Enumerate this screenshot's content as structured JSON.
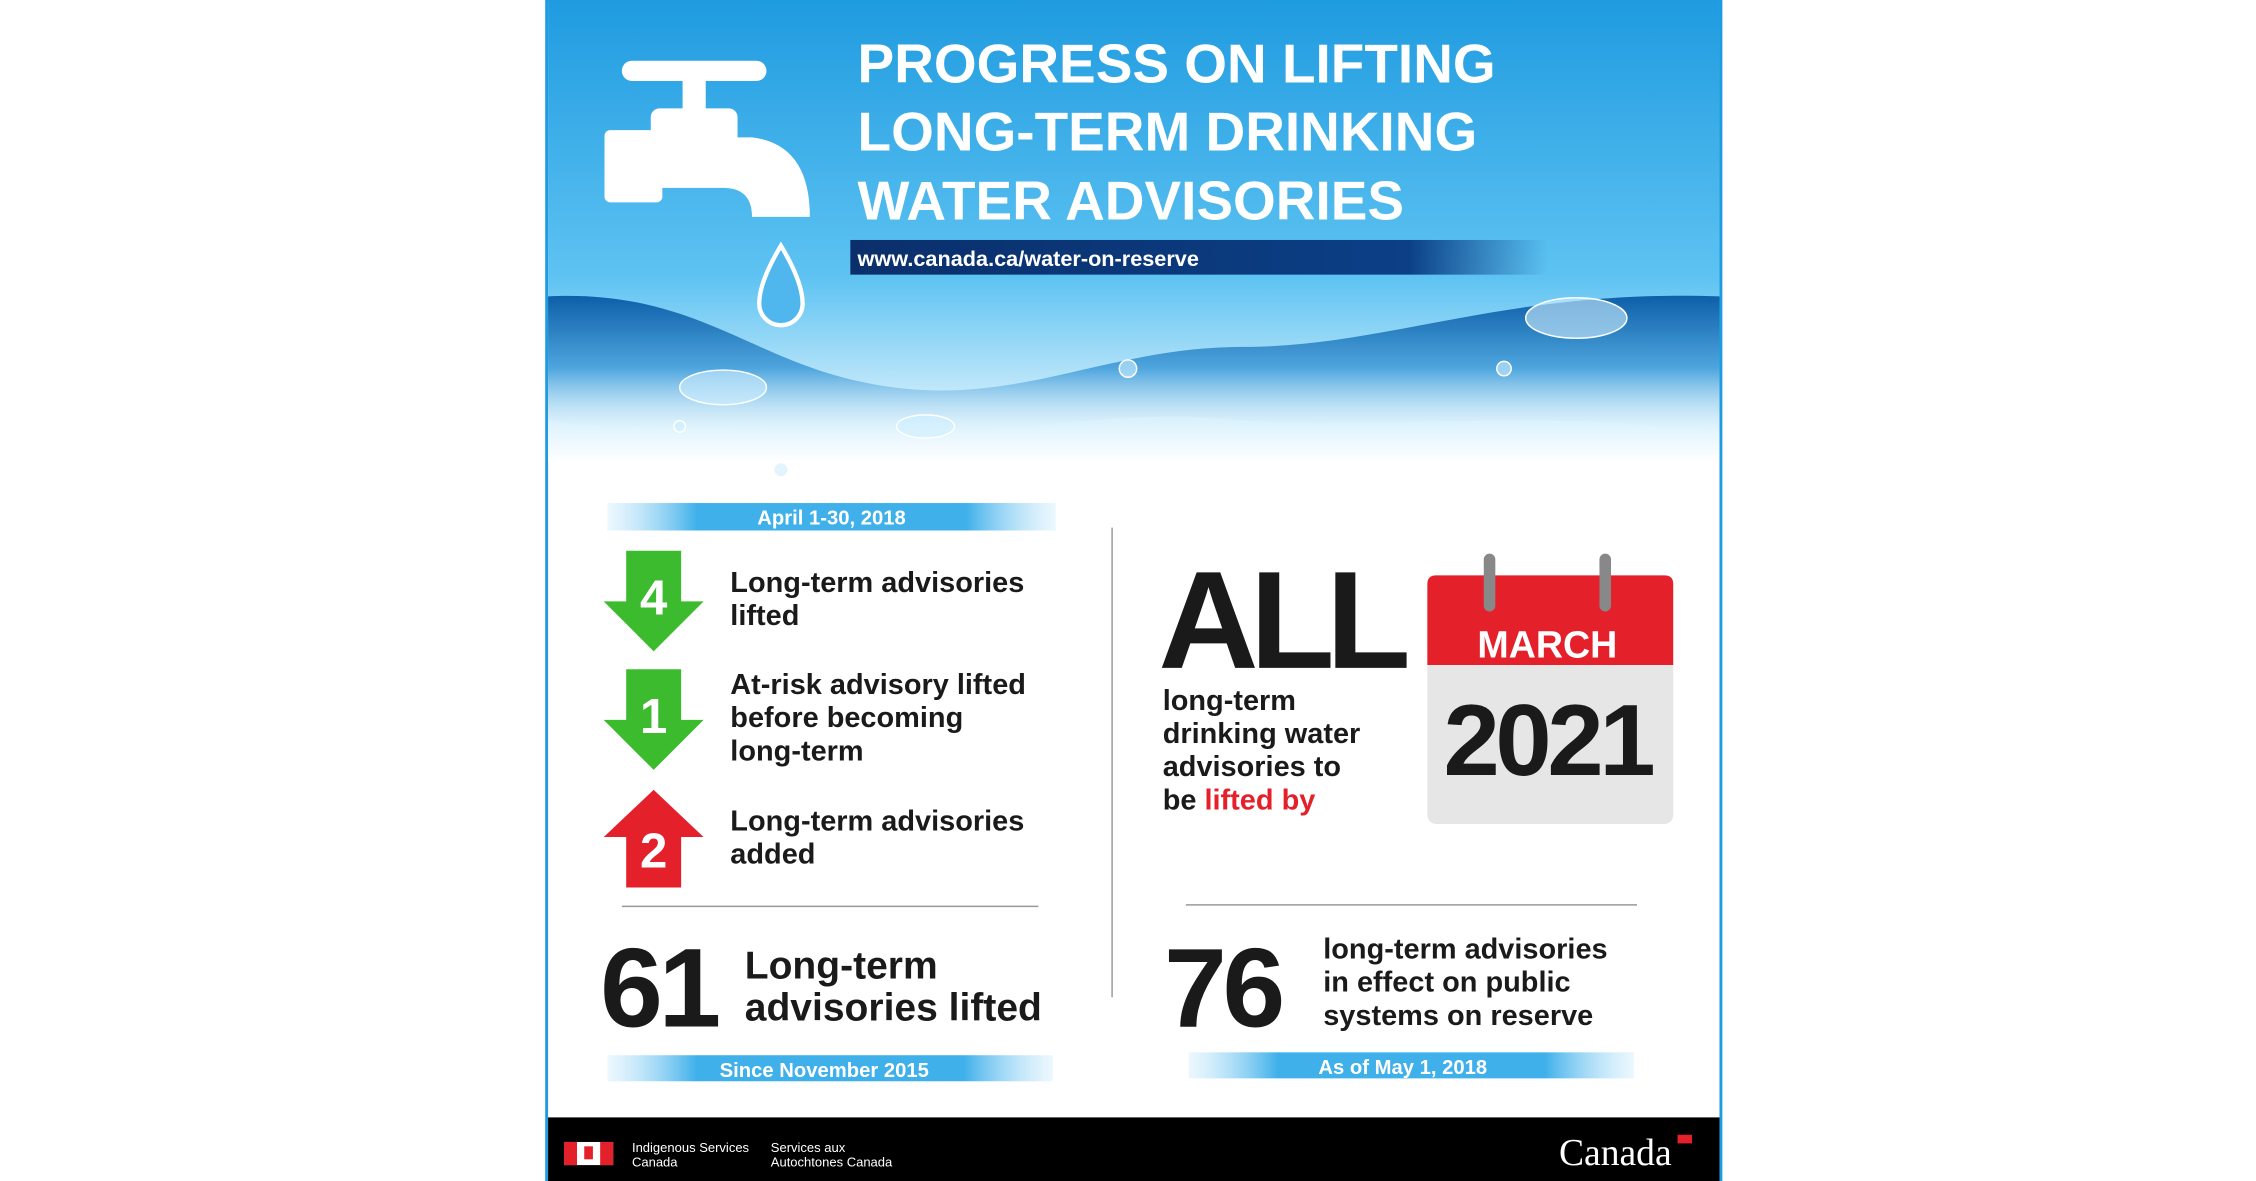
{
  "header": {
    "title": [
      "PROGRESS ON LIFTING",
      "LONG-TERM DRINKING",
      "WATER ADVISORIES"
    ],
    "url": "www.canada.ca/water-on-reserve"
  },
  "monthly": {
    "period": "April 1-30, 2018",
    "items": [
      {
        "number": 4,
        "label": [
          "Long-term advisories",
          "lifted"
        ],
        "direction": "down"
      },
      {
        "number": 1,
        "label": [
          "At-risk advisory lifted",
          "before becoming",
          "long-term"
        ],
        "direction": "down"
      },
      {
        "number": 2,
        "label": [
          "Long-term advisories",
          "added"
        ],
        "direction": "up"
      }
    ]
  },
  "total_lifted": {
    "number": 61,
    "label": [
      "Long-term",
      "advisories lifted"
    ],
    "period": "Since November 2015"
  },
  "goal": {
    "headline": "ALL",
    "text": [
      "long-term",
      "drinking water",
      "advisories to"
    ],
    "text_last": "be",
    "highlight": "lifted by",
    "month": "MARCH",
    "year": 2021
  },
  "in_effect": {
    "number": 76,
    "label": [
      "long-term advisories",
      "in effect on public",
      "systems on reserve"
    ],
    "date": "As of May 1, 2018"
  },
  "footer": {
    "dept_en": [
      "Indigenous Services",
      "Canada"
    ],
    "dept_fr": [
      "Services aux",
      "Autochtones Canada"
    ],
    "wordmark": "Canada"
  }
}
